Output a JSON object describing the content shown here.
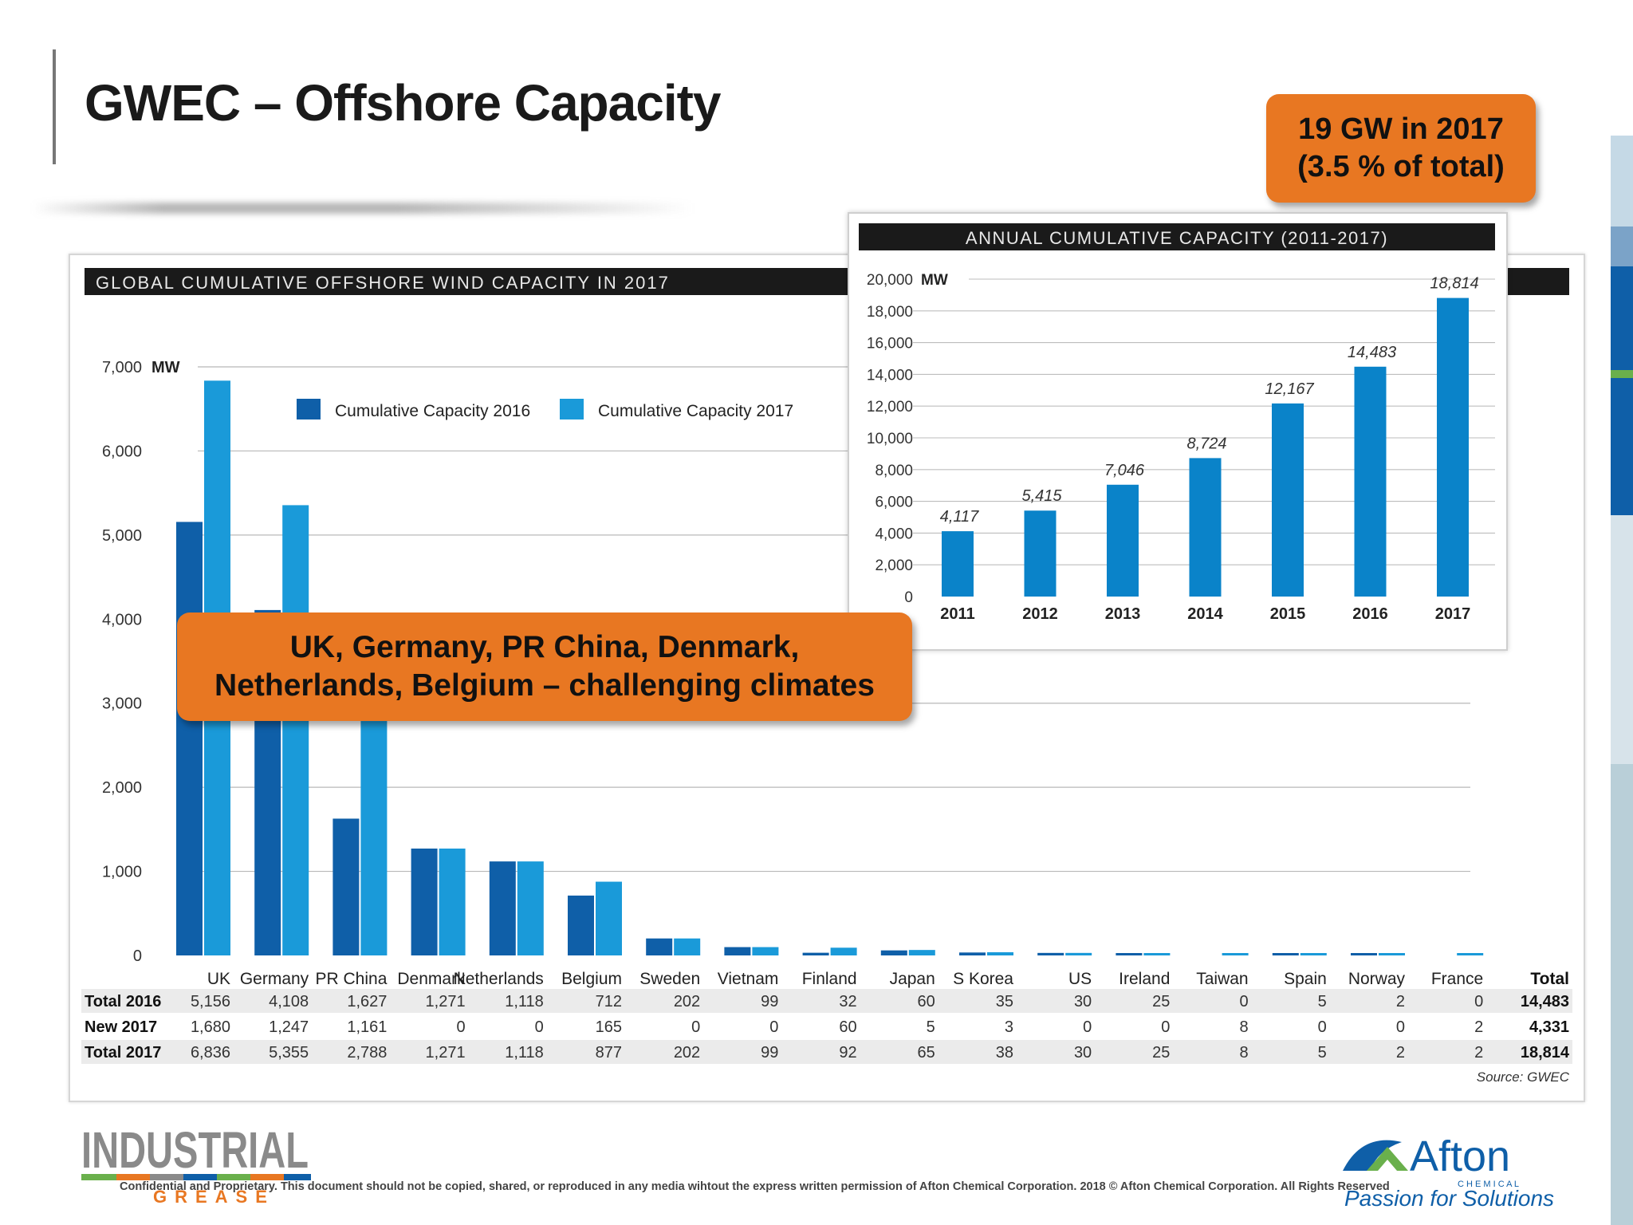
{
  "slide": {
    "title": "GWEC – Offshore Capacity",
    "callout_top_line1": "19 GW in 2017",
    "callout_top_line2": "(3.5 % of total)",
    "callout_mid_line1": "UK, Germany, PR China, Denmark,",
    "callout_mid_line2": "Netherlands, Belgium – challenging climates",
    "footer": "Confidential and Proprietary.  This document should not be copied, shared, or reproduced in any media wihtout the express written permission of Afton Chemical Corporation. 2018 © Afton Chemical Corporation.  All Rights Reserved",
    "logo_industrial": "INDUSTRIAL",
    "logo_grease": "GREASE",
    "logo_afton": "Afton",
    "logo_chemical": "C H E M I C A L",
    "logo_tagline": "Passion for Solutions",
    "accent": "#e87722"
  },
  "chart_data": [
    {
      "type": "bar",
      "title": "GLOBAL CUMULATIVE OFFSHORE WIND CAPACITY IN 2017",
      "ylabel": "MW",
      "ylim": [
        0,
        7000
      ],
      "yticks": [
        0,
        1000,
        2000,
        3000,
        4000,
        5000,
        6000,
        7000
      ],
      "ytick_labels": [
        "0",
        "1,000",
        "2,000",
        "3,000",
        "4,000",
        "5,000",
        "6,000",
        "7,000"
      ],
      "categories": [
        "UK",
        "Germany",
        "PR China",
        "Denmark",
        "Netherlands",
        "Belgium",
        "Sweden",
        "Vietnam",
        "Finland",
        "Japan",
        "S Korea",
        "US",
        "Ireland",
        "Taiwan",
        "Spain",
        "Norway",
        "France"
      ],
      "series": [
        {
          "name": "Cumulative Capacity 2016",
          "color": "#0f5fa8",
          "values": [
            5156,
            4108,
            1627,
            1271,
            1118,
            712,
            202,
            99,
            32,
            60,
            35,
            30,
            25,
            0,
            5,
            2,
            0
          ]
        },
        {
          "name": "Cumulative Capacity 2017",
          "color": "#1a9ad9",
          "values": [
            6836,
            5355,
            2788,
            1271,
            1118,
            877,
            202,
            99,
            92,
            65,
            38,
            30,
            25,
            8,
            5,
            2,
            2
          ]
        }
      ],
      "table": {
        "header_total": "Total",
        "rows": [
          {
            "label": "Total 2016",
            "cells": [
              "5,156",
              "4,108",
              "1,627",
              "1,271",
              "1,118",
              "712",
              "202",
              "99",
              "32",
              "60",
              "35",
              "30",
              "25",
              "0",
              "5",
              "2",
              "0"
            ],
            "total": "14,483"
          },
          {
            "label": "New 2017",
            "cells": [
              "1,680",
              "1,247",
              "1,161",
              "0",
              "0",
              "165",
              "0",
              "0",
              "60",
              "5",
              "3",
              "0",
              "0",
              "8",
              "0",
              "0",
              "2"
            ],
            "total": "4,331"
          },
          {
            "label": "Total 2017",
            "cells": [
              "6,836",
              "5,355",
              "2,788",
              "1,271",
              "1,118",
              "877",
              "202",
              "99",
              "92",
              "65",
              "38",
              "30",
              "25",
              "8",
              "5",
              "2",
              "2"
            ],
            "total": "18,814"
          }
        ]
      },
      "source": "Source: GWEC",
      "legend": "top-left"
    },
    {
      "type": "bar",
      "title": "ANNUAL CUMULATIVE CAPACITY (2011-2017)",
      "ylabel": "MW",
      "ylim": [
        0,
        20000
      ],
      "yticks": [
        0,
        2000,
        4000,
        6000,
        8000,
        10000,
        12000,
        14000,
        16000,
        18000,
        20000
      ],
      "ytick_labels": [
        "0",
        "2,000",
        "4,000",
        "6,000",
        "8,000",
        "10,000",
        "12,000",
        "14,000",
        "16,000",
        "18,000",
        "20,000"
      ],
      "categories": [
        "2011",
        "2012",
        "2013",
        "2014",
        "2015",
        "2016",
        "2017"
      ],
      "values": [
        4117,
        5415,
        7046,
        8724,
        12167,
        14483,
        18814
      ],
      "value_labels": [
        "4,117",
        "5,415",
        "7,046",
        "8,724",
        "12,167",
        "14,483",
        "18,814"
      ],
      "color": "#0a83c9"
    }
  ]
}
